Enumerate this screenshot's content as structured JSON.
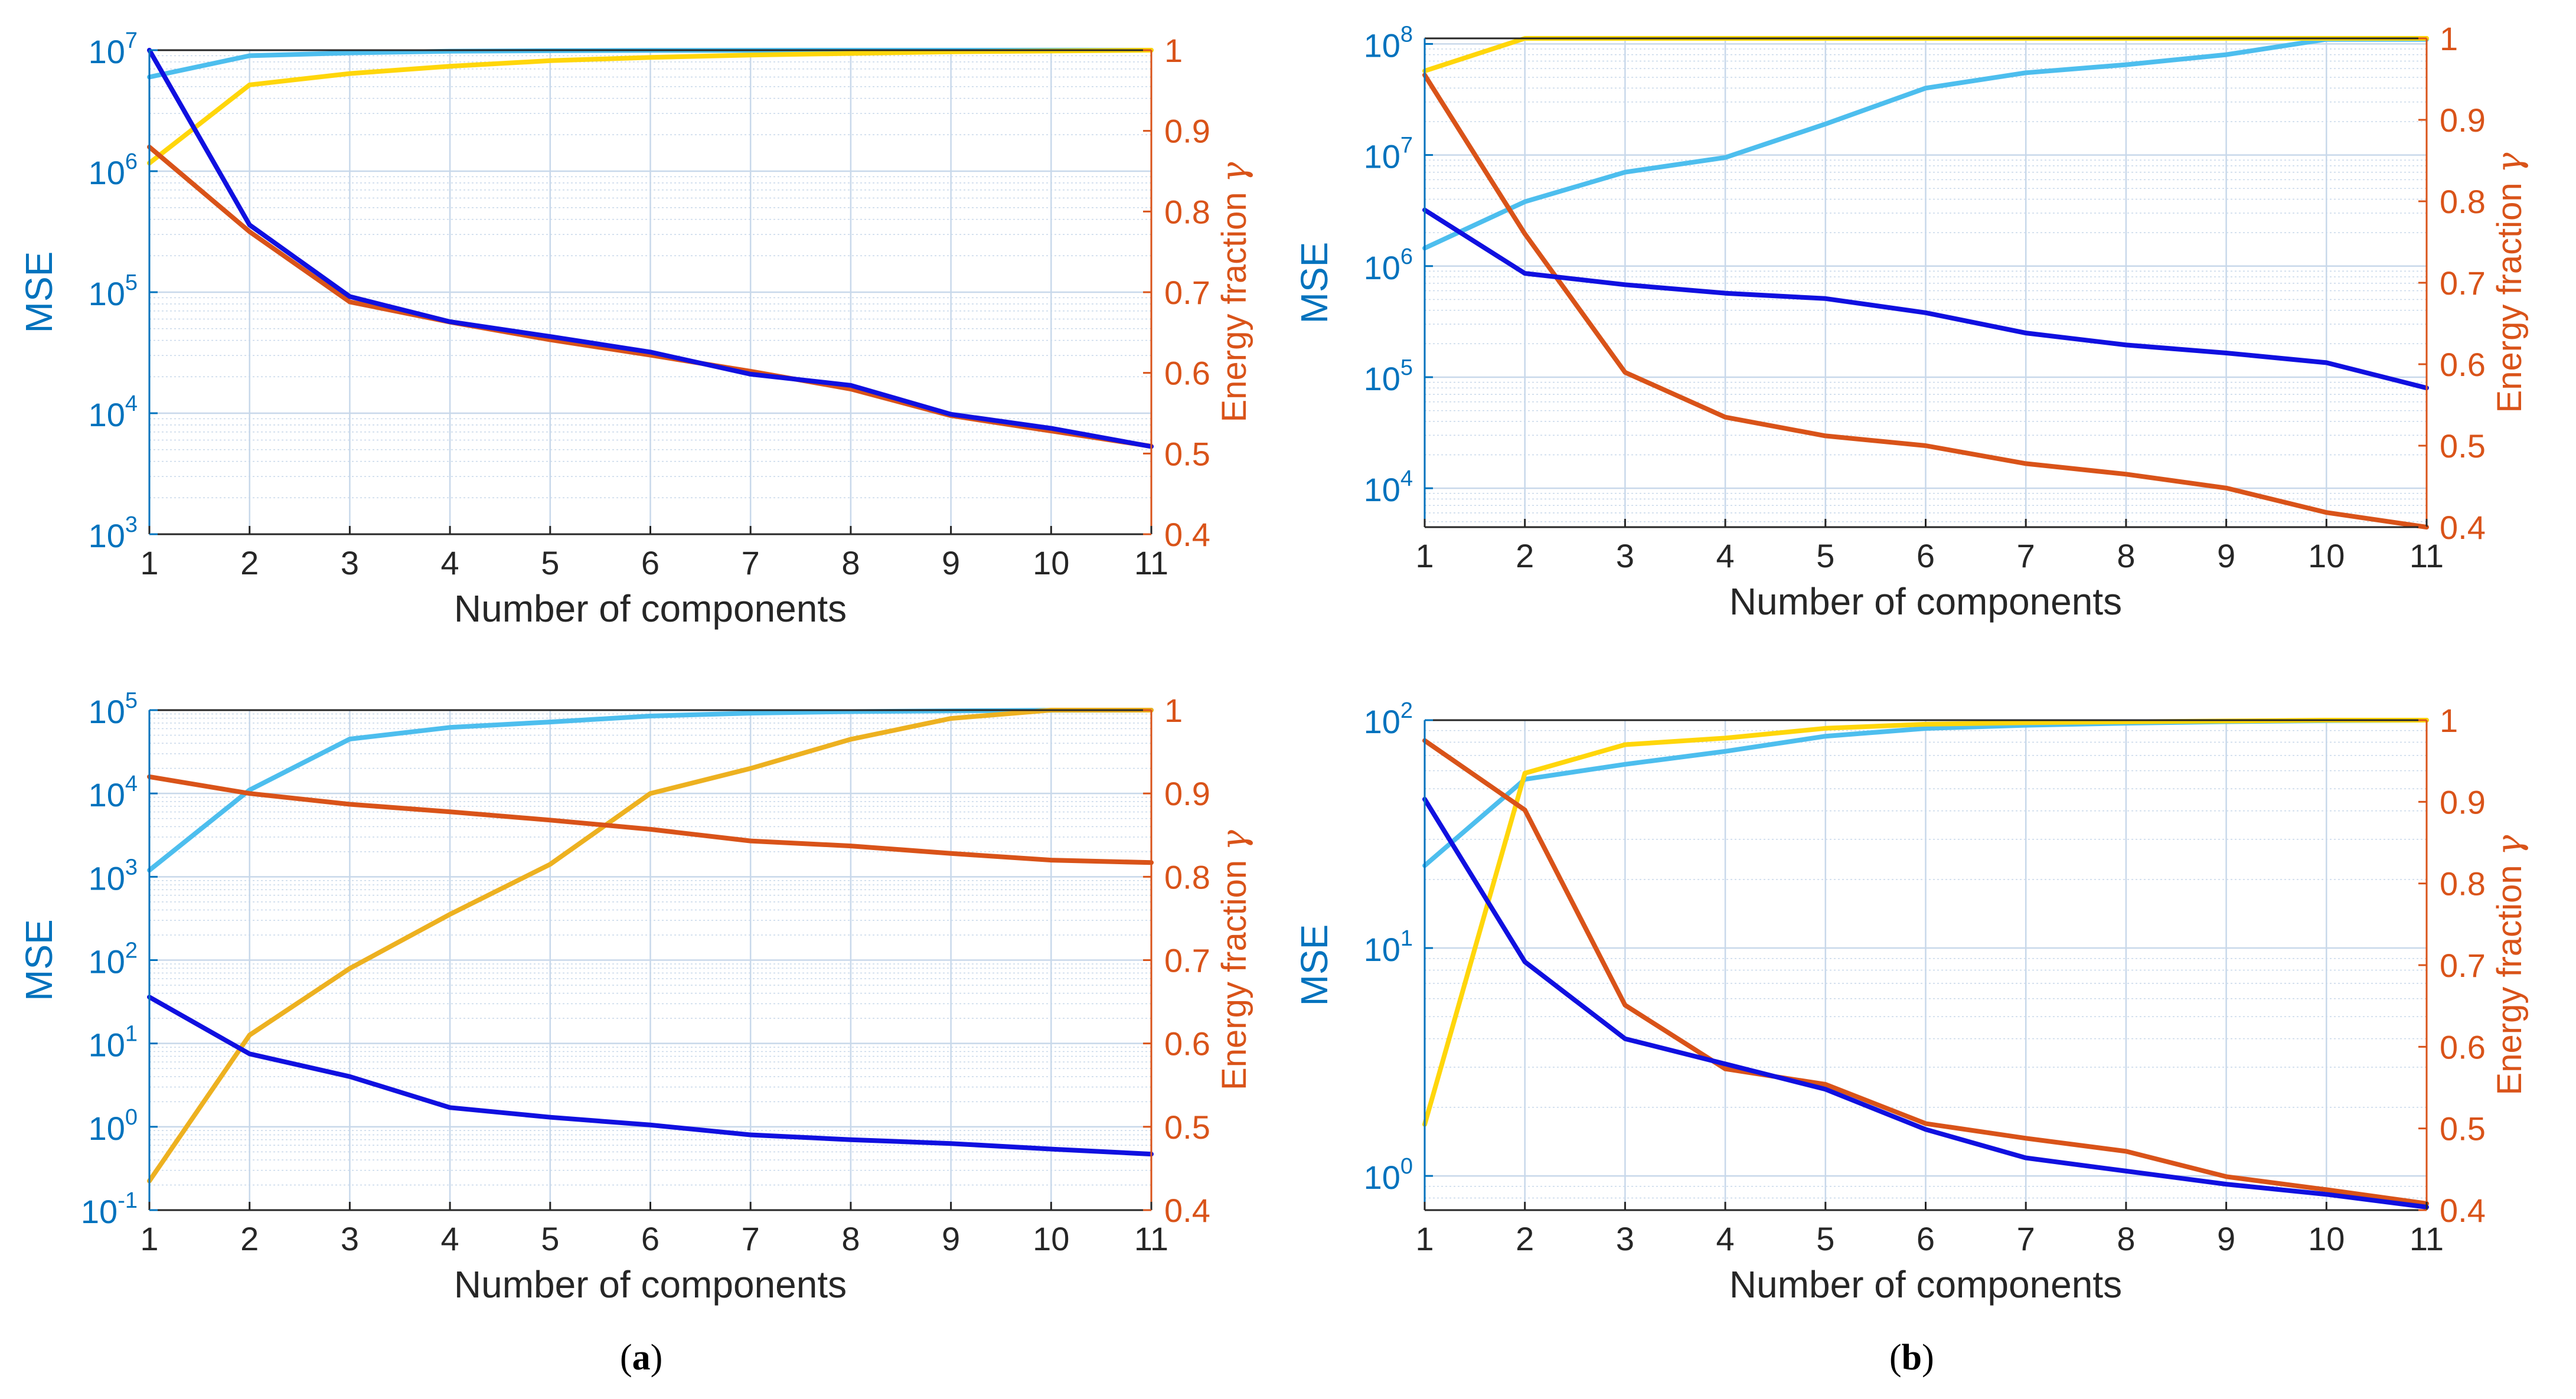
{
  "colors": {
    "mse_axis": "#0072BD",
    "energy_axis": "#D95319",
    "mse_line": "#1010E0",
    "energy_line": "#D95319",
    "cum_mse_line": "#4DBEEE",
    "cum_energy_line": "#FFD60A",
    "cum_energy_line_alt": "#EDB120",
    "grid": "#C8D8EA",
    "frame": "#262626"
  },
  "panel_labels": {
    "a_open": "(",
    "a_letter": "a",
    "a_close": ")",
    "b_open": "(",
    "b_letter": "b",
    "b_close": ")"
  },
  "chart_data": [
    {
      "type": "line",
      "xlabel": "Number of components",
      "ylabel": "MSE",
      "ylabel_right": "Energy fraction",
      "gamma_symbol": "γ",
      "x": [
        1,
        2,
        3,
        4,
        5,
        6,
        7,
        8,
        9,
        10,
        11
      ],
      "x_ticks": [
        "1",
        "2",
        "3",
        "4",
        "5",
        "6",
        "7",
        "8",
        "9",
        "10",
        "11"
      ],
      "yscale": "log",
      "ylim": [
        3,
        7
      ],
      "y_ticks": [
        {
          "base": "10",
          "exp": "3"
        },
        {
          "base": "10",
          "exp": "4"
        },
        {
          "base": "10",
          "exp": "5"
        },
        {
          "base": "10",
          "exp": "6"
        },
        {
          "base": "10",
          "exp": "7"
        }
      ],
      "y2lim": [
        0.4,
        1.0
      ],
      "y2_ticks": [
        "0.4",
        "0.5",
        "0.6",
        "0.7",
        "0.8",
        "0.9",
        "1"
      ],
      "grid": true,
      "series": [
        {
          "axis": "left",
          "color_key": "cum_mse_line",
          "values": [
            6000000,
            9000000,
            9500000,
            9800000,
            9900000,
            9950000,
            9970000,
            9985000,
            9993000,
            9998000,
            10000000
          ]
        },
        {
          "axis": "right",
          "color_key": "cum_energy_line",
          "values": [
            0.86,
            0.957,
            0.971,
            0.98,
            0.987,
            0.991,
            0.994,
            0.996,
            0.998,
            0.999,
            1.0
          ]
        },
        {
          "axis": "right",
          "color_key": "energy_line",
          "values": [
            0.88,
            0.775,
            0.688,
            0.663,
            0.641,
            0.622,
            0.602,
            0.58,
            0.547,
            0.528,
            0.509
          ]
        },
        {
          "axis": "left",
          "color_key": "mse_line",
          "values": [
            10000000,
            360000,
            92000,
            57000,
            43000,
            32000,
            21000,
            17000,
            9800,
            7500,
            5300
          ]
        }
      ]
    },
    {
      "type": "line",
      "xlabel": "Number of components",
      "ylabel": "MSE",
      "ylabel_right": "Energy fraction",
      "gamma_symbol": "γ",
      "x": [
        1,
        2,
        3,
        4,
        5,
        6,
        7,
        8,
        9,
        10,
        11
      ],
      "x_ticks": [
        "1",
        "2",
        "3",
        "4",
        "5",
        "6",
        "7",
        "8",
        "9",
        "10",
        "11"
      ],
      "yscale": "log",
      "ylim": [
        3.65,
        8.05
      ],
      "y_ticks": [
        {
          "base": "10",
          "exp": "4"
        },
        {
          "base": "10",
          "exp": "5"
        },
        {
          "base": "10",
          "exp": "6"
        },
        {
          "base": "10",
          "exp": "7"
        },
        {
          "base": "10",
          "exp": "8"
        }
      ],
      "y2lim": [
        0.4,
        1.0
      ],
      "y2_ticks": [
        "0.4",
        "0.5",
        "0.6",
        "0.7",
        "0.8",
        "0.9",
        "1"
      ],
      "grid": true,
      "series": [
        {
          "axis": "left",
          "color_key": "cum_mse_line",
          "values": [
            1450000,
            3800000,
            7000000,
            9500000,
            19000000,
            40000000,
            55000000,
            65000000,
            80000000,
            110000000,
            110000000
          ]
        },
        {
          "axis": "right",
          "color_key": "cum_energy_line",
          "values": [
            0.96,
            1.0,
            1.0,
            1.0,
            1.0,
            1.0,
            1.0,
            1.0,
            1.0,
            1.0,
            1.0
          ]
        },
        {
          "axis": "right",
          "color_key": "energy_line",
          "values": [
            0.955,
            0.76,
            0.59,
            0.535,
            0.512,
            0.5,
            0.478,
            0.465,
            0.448,
            0.418,
            0.4
          ]
        },
        {
          "axis": "left",
          "color_key": "mse_line",
          "values": [
            3200000,
            860000,
            680000,
            570000,
            510000,
            380000,
            250000,
            195000,
            165000,
            135000,
            80000
          ]
        }
      ]
    },
    {
      "type": "line",
      "xlabel": "Number of components",
      "ylabel": "MSE",
      "ylabel_right": "Energy fraction",
      "gamma_symbol": "γ",
      "x": [
        1,
        2,
        3,
        4,
        5,
        6,
        7,
        8,
        9,
        10,
        11
      ],
      "x_ticks": [
        "1",
        "2",
        "3",
        "4",
        "5",
        "6",
        "7",
        "8",
        "9",
        "10",
        "11"
      ],
      "yscale": "log",
      "ylim": [
        -1,
        5
      ],
      "y_ticks": [
        {
          "base": "10",
          "exp": "-1"
        },
        {
          "base": "10",
          "exp": "0"
        },
        {
          "base": "10",
          "exp": "1"
        },
        {
          "base": "10",
          "exp": "2"
        },
        {
          "base": "10",
          "exp": "3"
        },
        {
          "base": "10",
          "exp": "4"
        },
        {
          "base": "10",
          "exp": "5"
        }
      ],
      "y2lim": [
        0.4,
        1.0
      ],
      "y2_ticks": [
        "0.4",
        "0.5",
        "0.6",
        "0.7",
        "0.8",
        "0.9",
        "1"
      ],
      "grid": true,
      "series": [
        {
          "axis": "left",
          "color_key": "cum_mse_line",
          "values": [
            1200,
            11000,
            45000,
            62000,
            72000,
            85000,
            92000,
            96000,
            98000,
            99500,
            100000
          ]
        },
        {
          "axis": "right",
          "color_key": "cum_energy_line_alt",
          "values": [
            0.435,
            0.61,
            0.69,
            0.755,
            0.815,
            0.9,
            0.93,
            0.965,
            0.99,
            1.0,
            1.0
          ]
        },
        {
          "axis": "right",
          "color_key": "energy_line",
          "values": [
            0.92,
            0.9,
            0.887,
            0.878,
            0.868,
            0.857,
            0.843,
            0.837,
            0.828,
            0.82,
            0.817
          ]
        },
        {
          "axis": "left",
          "color_key": "mse_line",
          "values": [
            36,
            7.5,
            4,
            1.7,
            1.3,
            1.05,
            0.8,
            0.7,
            0.63,
            0.54,
            0.47
          ]
        }
      ]
    },
    {
      "type": "line",
      "xlabel": "Number of components",
      "ylabel": "MSE",
      "ylabel_right": "Energy fraction",
      "gamma_symbol": "γ",
      "x": [
        1,
        2,
        3,
        4,
        5,
        6,
        7,
        8,
        9,
        10,
        11
      ],
      "x_ticks": [
        "1",
        "2",
        "3",
        "4",
        "5",
        "6",
        "7",
        "8",
        "9",
        "10",
        "11"
      ],
      "yscale": "log",
      "ylim": [
        -0.15,
        2
      ],
      "y_ticks": [
        {
          "base": "10",
          "exp": "0"
        },
        {
          "base": "10",
          "exp": "1"
        },
        {
          "base": "10",
          "exp": "2"
        }
      ],
      "y2lim": [
        0.4,
        1.0
      ],
      "y2_ticks": [
        "0.4",
        "0.5",
        "0.6",
        "0.7",
        "0.8",
        "0.9",
        "1"
      ],
      "grid": true,
      "series": [
        {
          "axis": "left",
          "color_key": "cum_mse_line",
          "values": [
            23,
            55,
            64,
            73,
            85,
            92,
            95,
            97,
            98.5,
            99.5,
            100
          ]
        },
        {
          "axis": "right",
          "color_key": "cum_energy_line",
          "values": [
            0.505,
            0.935,
            0.97,
            0.978,
            0.99,
            0.995,
            0.997,
            0.998,
            0.999,
            1.0,
            1.0
          ]
        },
        {
          "axis": "right",
          "color_key": "energy_line",
          "values": [
            0.975,
            0.89,
            0.651,
            0.573,
            0.554,
            0.506,
            0.488,
            0.472,
            0.441,
            0.425,
            0.408
          ]
        },
        {
          "axis": "left",
          "color_key": "mse_line",
          "values": [
            45,
            8.7,
            4,
            3.1,
            2.4,
            1.6,
            1.2,
            1.05,
            0.92,
            0.83,
            0.73
          ]
        }
      ]
    }
  ]
}
